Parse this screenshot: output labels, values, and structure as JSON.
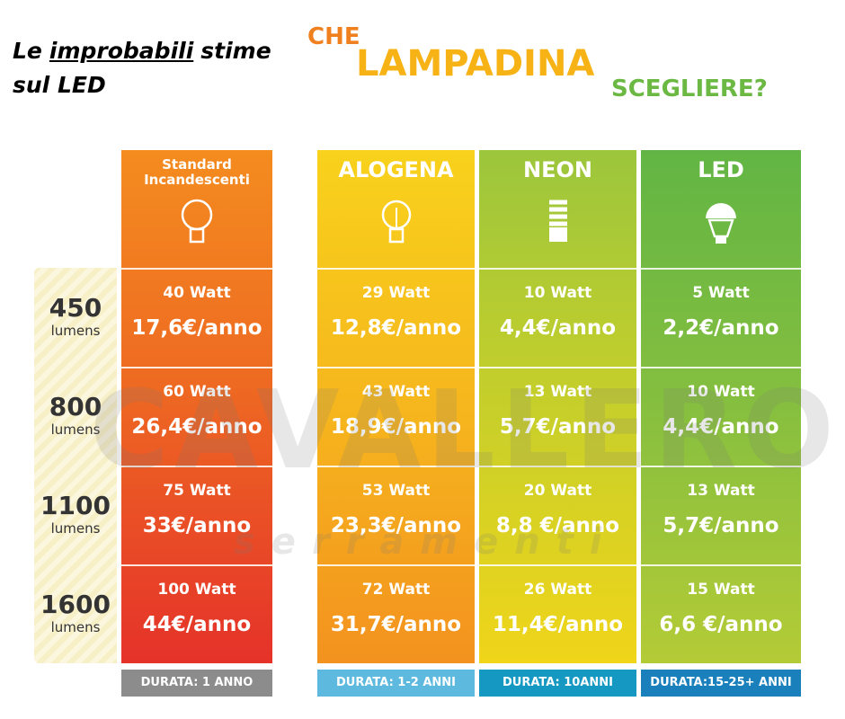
{
  "header": {
    "note": [
      "Le",
      "improbabili",
      "stime sul LED"
    ],
    "title": [
      "CHE",
      "LAMPADINA",
      "SCEGLIERE?"
    ]
  },
  "watermark": [
    "CAVALLERO",
    "serramenti"
  ],
  "rows": [
    {
      "value": "450",
      "unit": "lumens"
    },
    {
      "value": "800",
      "unit": "lumens"
    },
    {
      "value": "1100",
      "unit": "lumens"
    },
    {
      "value": "1600",
      "unit": "lumens"
    }
  ],
  "columns": [
    {
      "name": "Standard Incandescenti",
      "cells": [
        {
          "watt": "40 Watt",
          "cost": "17,6€/anno"
        },
        {
          "watt": "60 Watt",
          "cost": "26,4€/anno"
        },
        {
          "watt": "75 Watt",
          "cost": "33€/anno"
        },
        {
          "watt": "100 Watt",
          "cost": "44€/anno"
        }
      ],
      "duration": "DURATA: 1 ANNO"
    },
    {
      "name": "ALOGENA",
      "cells": [
        {
          "watt": "29 Watt",
          "cost": "12,8€/anno"
        },
        {
          "watt": "43 Watt",
          "cost": "18,9€/anno"
        },
        {
          "watt": "53 Watt",
          "cost": "23,3€/anno"
        },
        {
          "watt": "72 Watt",
          "cost": "31,7€/anno"
        }
      ],
      "duration": "DURATA: 1-2 ANNI"
    },
    {
      "name": "NEON",
      "cells": [
        {
          "watt": "10 Watt",
          "cost": "4,4€/anno"
        },
        {
          "watt": "13 Watt",
          "cost": "5,7€/anno"
        },
        {
          "watt": "20 Watt",
          "cost": "8,8 €/anno"
        },
        {
          "watt": "26 Watt",
          "cost": "11,4€/anno"
        }
      ],
      "duration": "DURATA: 10ANNI"
    },
    {
      "name": "LED",
      "cells": [
        {
          "watt": "5 Watt",
          "cost": "2,2€/anno"
        },
        {
          "watt": "10 Watt",
          "cost": "4,4€/anno"
        },
        {
          "watt": "13 Watt",
          "cost": "5,7€/anno"
        },
        {
          "watt": "15 Watt",
          "cost": "6,6 €/anno"
        }
      ],
      "duration": "DURATA:15-25+ ANNI"
    }
  ]
}
